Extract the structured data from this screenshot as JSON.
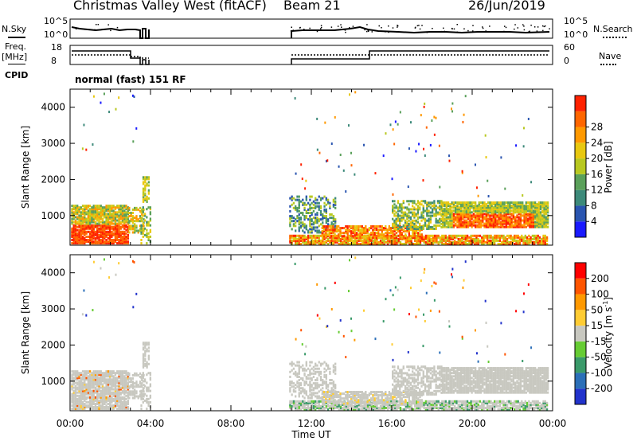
{
  "header": {
    "station": "Christmas Valley West (fitACF)",
    "beam": "Beam 21",
    "date": "26/Jun/2019"
  },
  "top_panels": {
    "nsky_label": "N.Sky",
    "nsky_ticks": [
      "10^5",
      "10^0"
    ],
    "nsearch_label": "N.Search",
    "nsearch_ticks": [
      "10^5",
      "10^0"
    ],
    "freq_label": "Freq.",
    "freq_unit": "[MHz]",
    "freq_ticks": [
      "18",
      "8"
    ],
    "nave_label": "Nave",
    "nave_ticks": [
      "60",
      "0"
    ],
    "cpid_label": "CPID",
    "cpid_value": "normal (fast) 151 RF"
  },
  "chart_data": [
    {
      "type": "heatmap",
      "name": "power",
      "ylabel": "Slant Range [km]",
      "xlabel": "",
      "x_ticks": [
        "00:00",
        "04:00",
        "08:00",
        "12:00",
        "16:00",
        "20:00",
        "00:00"
      ],
      "x_range_hours": [
        0,
        24
      ],
      "y_ticks": [
        1000,
        2000,
        3000,
        4000
      ],
      "ylim": [
        180,
        4500
      ],
      "colorbar": {
        "label": "Power [dB]",
        "ticks": [
          "4",
          "8",
          "12",
          "16",
          "20",
          "24",
          "28"
        ],
        "range": [
          0,
          32
        ],
        "colors": [
          "#1a1aff",
          "#2a55b0",
          "#3d8a7a",
          "#5aa05a",
          "#b8c820",
          "#e8c810",
          "#ff9900",
          "#ff6600",
          "#ff2200"
        ]
      }
    },
    {
      "type": "heatmap",
      "name": "velocity",
      "ylabel": "Slant Range [km]",
      "xlabel": "Time UT",
      "x_ticks": [
        "00:00",
        "04:00",
        "08:00",
        "12:00",
        "16:00",
        "20:00",
        "00:00"
      ],
      "x_range_hours": [
        0,
        24
      ],
      "y_ticks": [
        1000,
        2000,
        3000,
        4000
      ],
      "ylim": [
        180,
        4500
      ],
      "colorbar": {
        "label": "Velocity [m s",
        "label_sup": "-1",
        "label_end": "]",
        "ticks": [
          "200",
          "100",
          "50",
          "15",
          "-15",
          "-50",
          "-100",
          "-200"
        ],
        "colors": [
          "#2233cc",
          "#2b6fb8",
          "#3a9a6a",
          "#66cc33",
          "#c8c8c0",
          "#ffcc33",
          "#ff9900",
          "#ff5500",
          "#ff0000"
        ]
      }
    }
  ]
}
